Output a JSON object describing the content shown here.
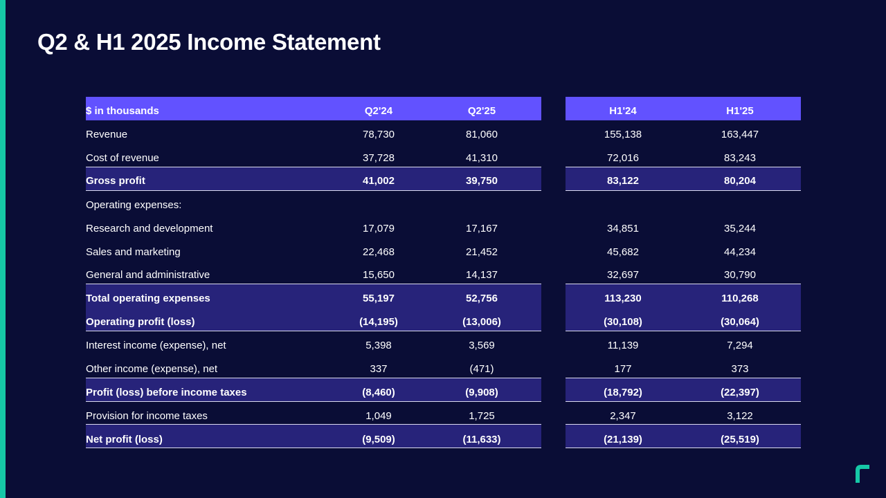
{
  "title": "Q2 & H1 2025 Income Statement",
  "colors": {
    "background": "#0a0d36",
    "accent": "#16c8a7",
    "header": "#6252ff",
    "highlight_band": "#27237a"
  },
  "logo": {
    "icon": "company-logo-icon"
  },
  "table": {
    "header": {
      "label": "$ in thousands",
      "q2_24": "Q2'24",
      "q2_25": "Q2'25",
      "h1_24": "H1'24",
      "h1_25": "H1'25"
    },
    "rows": [
      {
        "label": "Revenue",
        "q2_24": "78,730",
        "q2_25": "81,060",
        "h1_24": "155,138",
        "h1_25": "163,447"
      },
      {
        "label": "Cost of revenue",
        "q2_24": "37,728",
        "q2_25": "41,310",
        "h1_24": "72,016",
        "h1_25": "83,243"
      },
      {
        "label": "Gross profit",
        "q2_24": "41,002",
        "q2_25": "39,750",
        "h1_24": "83,122",
        "h1_25": "80,204"
      },
      {
        "label": "Operating expenses:",
        "q2_24": "",
        "q2_25": "",
        "h1_24": "",
        "h1_25": ""
      },
      {
        "label": "Research and development",
        "q2_24": "17,079",
        "q2_25": "17,167",
        "h1_24": "34,851",
        "h1_25": "35,244"
      },
      {
        "label": "Sales and marketing",
        "q2_24": "22,468",
        "q2_25": "21,452",
        "h1_24": "45,682",
        "h1_25": "44,234"
      },
      {
        "label": "General and administrative",
        "q2_24": "15,650",
        "q2_25": "14,137",
        "h1_24": "32,697",
        "h1_25": "30,790"
      },
      {
        "label": "Total operating expenses",
        "q2_24": "55,197",
        "q2_25": "52,756",
        "h1_24": "113,230",
        "h1_25": "110,268"
      },
      {
        "label": "Operating profit (loss)",
        "q2_24": "(14,195)",
        "q2_25": "(13,006)",
        "h1_24": "(30,108)",
        "h1_25": "(30,064)"
      },
      {
        "label": "Interest income (expense), net",
        "q2_24": "5,398",
        "q2_25": "3,569",
        "h1_24": "11,139",
        "h1_25": "7,294"
      },
      {
        "label": "Other income (expense), net",
        "q2_24": "337",
        "q2_25": "(471)",
        "h1_24": "177",
        "h1_25": "373"
      },
      {
        "label": "Profit (loss) before income taxes",
        "q2_24": "(8,460)",
        "q2_25": "(9,908)",
        "h1_24": "(18,792)",
        "h1_25": "(22,397)"
      },
      {
        "label": "Provision for income taxes",
        "q2_24": "1,049",
        "q2_25": "1,725",
        "h1_24": "2,347",
        "h1_25": "3,122"
      },
      {
        "label": "Net profit (loss)",
        "q2_24": "(9,509)",
        "q2_25": "(11,633)",
        "h1_24": "(21,139)",
        "h1_25": "(25,519)"
      }
    ]
  }
}
